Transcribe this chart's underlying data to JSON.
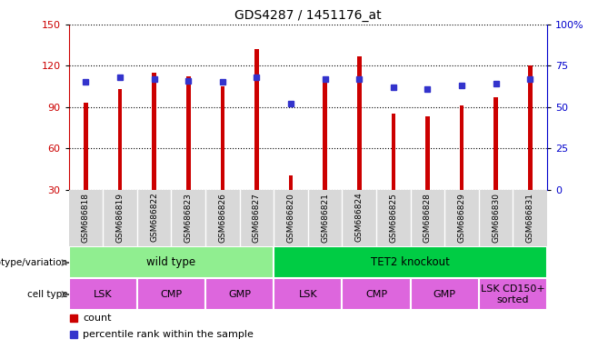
{
  "title": "GDS4287 / 1451176_at",
  "samples": [
    "GSM686818",
    "GSM686819",
    "GSM686822",
    "GSM686823",
    "GSM686826",
    "GSM686827",
    "GSM686820",
    "GSM686821",
    "GSM686824",
    "GSM686825",
    "GSM686828",
    "GSM686829",
    "GSM686830",
    "GSM686831"
  ],
  "counts": [
    93,
    103,
    115,
    112,
    105,
    132,
    40,
    110,
    127,
    85,
    83,
    91,
    97,
    120
  ],
  "percentile_ranks": [
    65,
    68,
    67,
    66,
    65,
    68,
    52,
    67,
    67,
    62,
    61,
    63,
    64,
    67
  ],
  "bar_color": "#cc0000",
  "dot_color": "#3333cc",
  "ylim_left": [
    30,
    150
  ],
  "yticks_left": [
    30,
    60,
    90,
    120,
    150
  ],
  "ylim_right": [
    0,
    100
  ],
  "yticks_right": [
    0,
    25,
    50,
    75,
    100
  ],
  "genotype_groups": [
    {
      "label": "wild type",
      "start": 0,
      "end": 5,
      "color": "#90ee90"
    },
    {
      "label": "TET2 knockout",
      "start": 6,
      "end": 13,
      "color": "#00cc44"
    }
  ],
  "cell_type_groups": [
    {
      "label": "LSK",
      "start": 0,
      "end": 1,
      "color": "#dd66dd"
    },
    {
      "label": "CMP",
      "start": 2,
      "end": 3,
      "color": "#dd66dd"
    },
    {
      "label": "GMP",
      "start": 4,
      "end": 5,
      "color": "#dd66dd"
    },
    {
      "label": "LSK",
      "start": 6,
      "end": 7,
      "color": "#dd66dd"
    },
    {
      "label": "CMP",
      "start": 8,
      "end": 9,
      "color": "#dd66dd"
    },
    {
      "label": "GMP",
      "start": 10,
      "end": 11,
      "color": "#dd66dd"
    },
    {
      "label": "LSK CD150+\nsorted",
      "start": 12,
      "end": 13,
      "color": "#dd66dd"
    }
  ],
  "bar_width": 0.12,
  "gray_bg": "#d8d8d8",
  "ylabel_left_color": "#cc0000",
  "ylabel_right_color": "#0000cc"
}
